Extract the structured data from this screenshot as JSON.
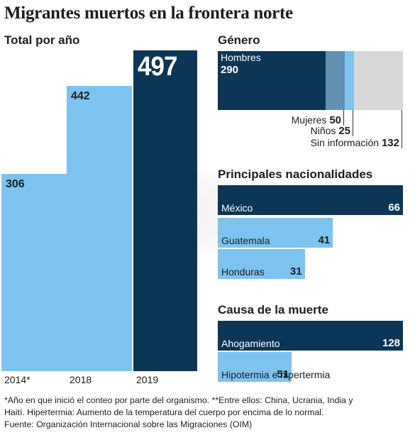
{
  "title": "Migrantes muertos en la frontera norte",
  "total_section": {
    "heading": "Total por año",
    "bars": [
      {
        "year_label": "2014*",
        "value": 306,
        "value_label": "306"
      },
      {
        "year_label": "2018",
        "value": 442,
        "value_label": "442"
      },
      {
        "year_label": "2019",
        "value": 497,
        "value_label": "497"
      }
    ]
  },
  "gender_section": {
    "heading": "Género",
    "total": 497,
    "segments": [
      {
        "label": "Hombres",
        "value": 290,
        "value_label": "290"
      },
      {
        "label": "Mujeres",
        "value": 50,
        "value_label": "50"
      },
      {
        "label": "Niños",
        "value": 25,
        "value_label": "25"
      },
      {
        "label": "Sin información",
        "value": 132,
        "value_label": "132"
      }
    ]
  },
  "nationality_section": {
    "heading": "Principales nacionalidades",
    "items": [
      {
        "label": "México",
        "value": 66,
        "value_label": "66"
      },
      {
        "label": "Guatemala",
        "value": 41,
        "value_label": "41"
      },
      {
        "label": "Honduras",
        "value": 31,
        "value_label": "31"
      }
    ]
  },
  "cause_section": {
    "heading": "Causa de la muerte",
    "items": [
      {
        "label": "Ahogamiento",
        "value": 128,
        "value_label": "128"
      },
      {
        "label": "Hipotermia e hipertermia",
        "value": 51,
        "value_label": "51"
      }
    ]
  },
  "footnote": {
    "line1": "*Año en que inició el conteo por parte del organismo. **Entre ellos: China, Ucrania, India y",
    "line2": "Haití. Hipertermia: Aumento de la temperatura del cuerpo por encima de lo normal.",
    "line3": "Fuente: Organización Internacional sobre las Migraciones (OIM)"
  },
  "colors": {
    "navy": "#0b3656",
    "light_blue": "#7cc4ef",
    "steel_blue": "#6290b2",
    "grey": "#d8d8d8"
  },
  "chart_data": [
    {
      "type": "bar",
      "title": "Total por año",
      "categories": [
        "2014*",
        "2018",
        "2019"
      ],
      "values": [
        306,
        442,
        497
      ]
    },
    {
      "type": "bar",
      "title": "Género",
      "categories": [
        "Hombres",
        "Mujeres",
        "Niños",
        "Sin información"
      ],
      "values": [
        290,
        50,
        25,
        132
      ]
    },
    {
      "type": "bar",
      "title": "Principales nacionalidades",
      "categories": [
        "México",
        "Guatemala",
        "Honduras"
      ],
      "values": [
        66,
        41,
        31
      ]
    },
    {
      "type": "bar",
      "title": "Causa de la muerte",
      "categories": [
        "Ahogamiento",
        "Hipotermia e hipertermia"
      ],
      "values": [
        128,
        51
      ]
    }
  ]
}
